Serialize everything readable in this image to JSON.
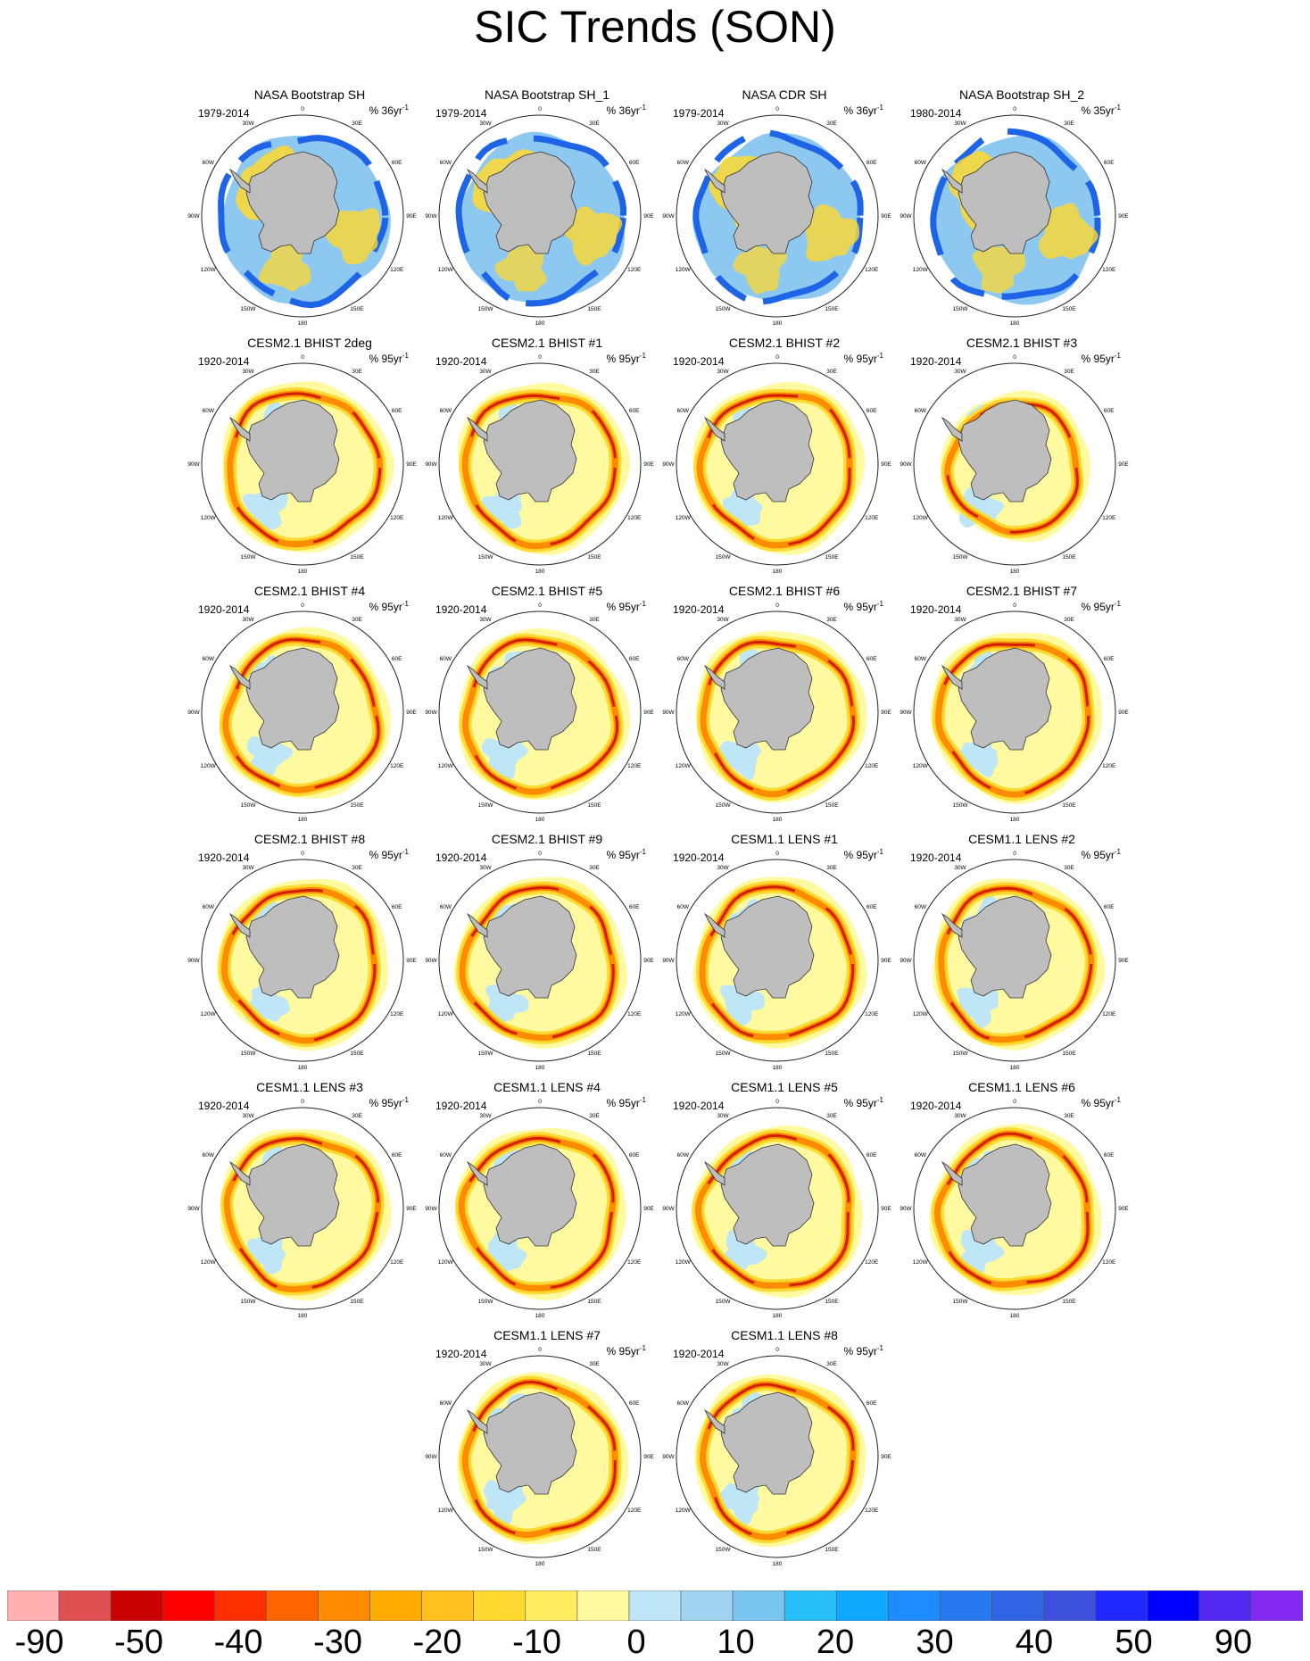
{
  "title": "SIC Trends (SON)",
  "panels": [
    {
      "name": "NASA Bootstrap SH",
      "period": "1979-2014",
      "unit": "% 36yr",
      "kind": "obs"
    },
    {
      "name": "NASA Bootstrap SH_1",
      "period": "1979-2014",
      "unit": "% 36yr",
      "kind": "obs"
    },
    {
      "name": "NASA CDR SH",
      "period": "1979-2014",
      "unit": "% 36yr",
      "kind": "obs"
    },
    {
      "name": "NASA Bootstrap SH_2",
      "period": "1980-2014",
      "unit": "% 35yr",
      "kind": "obs"
    },
    {
      "name": "CESM2.1 BHIST 2deg",
      "period": "1920-2014",
      "unit": "% 95yr",
      "kind": "model"
    },
    {
      "name": "CESM2.1 BHIST #1",
      "period": "1920-2014",
      "unit": "% 95yr",
      "kind": "model"
    },
    {
      "name": "CESM2.1 BHIST #2",
      "period": "1920-2014",
      "unit": "% 95yr",
      "kind": "model"
    },
    {
      "name": "CESM2.1 BHIST #3",
      "period": "1920-2014",
      "unit": "% 95yr",
      "kind": "model"
    },
    {
      "name": "CESM2.1 BHIST #4",
      "period": "1920-2014",
      "unit": "% 95yr",
      "kind": "model"
    },
    {
      "name": "CESM2.1 BHIST #5",
      "period": "1920-2014",
      "unit": "% 95yr",
      "kind": "model"
    },
    {
      "name": "CESM2.1 BHIST #6",
      "period": "1920-2014",
      "unit": "% 95yr",
      "kind": "model"
    },
    {
      "name": "CESM2.1 BHIST #7",
      "period": "1920-2014",
      "unit": "% 95yr",
      "kind": "model"
    },
    {
      "name": "CESM2.1 BHIST #8",
      "period": "1920-2014",
      "unit": "% 95yr",
      "kind": "model"
    },
    {
      "name": "CESM2.1 BHIST #9",
      "period": "1920-2014",
      "unit": "% 95yr",
      "kind": "model"
    },
    {
      "name": "CESM1.1 LENS #1",
      "period": "1920-2014",
      "unit": "% 95yr",
      "kind": "model"
    },
    {
      "name": "CESM1.1 LENS #2",
      "period": "1920-2014",
      "unit": "% 95yr",
      "kind": "model"
    },
    {
      "name": "CESM1.1 LENS #3",
      "period": "1920-2014",
      "unit": "% 95yr",
      "kind": "model"
    },
    {
      "name": "CESM1.1 LENS #4",
      "period": "1920-2014",
      "unit": "% 95yr",
      "kind": "model"
    },
    {
      "name": "CESM1.1 LENS #5",
      "period": "1920-2014",
      "unit": "% 95yr",
      "kind": "model"
    },
    {
      "name": "CESM1.1 LENS #6",
      "period": "1920-2014",
      "unit": "% 95yr",
      "kind": "model"
    },
    {
      "name": "CESM1.1 LENS #7",
      "period": "1920-2014",
      "unit": "% 95yr",
      "kind": "model"
    },
    {
      "name": "CESM1.1 LENS #8",
      "period": "1920-2014",
      "unit": "% 95yr",
      "kind": "model"
    }
  ],
  "unit_superscript": "-1",
  "longitude_labels": [
    "0",
    "30E",
    "60E",
    "90E",
    "120E",
    "150E",
    "180",
    "150W",
    "120W",
    "90W",
    "60W",
    "30W"
  ],
  "colorbar": {
    "colors": [
      "#ffb0b0",
      "#e05050",
      "#c80000",
      "#ff0000",
      "#ff3000",
      "#ff6400",
      "#ff8c00",
      "#ffaa00",
      "#ffc020",
      "#ffd830",
      "#ffec60",
      "#fffaa0",
      "#bfe6f6",
      "#a0d4f0",
      "#78c6f0",
      "#28c0f8",
      "#10a8ff",
      "#1e8cff",
      "#2878f0",
      "#3264e6",
      "#3c50dc",
      "#1e28ff",
      "#0000ff",
      "#5028f0",
      "#8228f0"
    ],
    "labels": [
      "-90",
      "-50",
      "-40",
      "-30",
      "-20",
      "-10",
      "0",
      "10",
      "20",
      "30",
      "40",
      "50",
      "90"
    ]
  },
  "colors": {
    "land": "#bebebe",
    "obs_decline_strong": "#1e64e6",
    "obs_decline_weak": "#8cc8f0",
    "obs_increase": "#ffd830",
    "model_decline_core": "#d21e00",
    "model_decline_mid": "#ff8c00",
    "model_decline_weak": "#ffd830",
    "model_background": "#fffaa0",
    "model_increase": "#bfe6f6"
  }
}
